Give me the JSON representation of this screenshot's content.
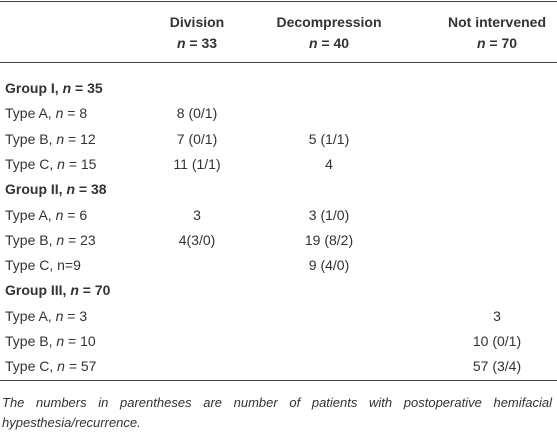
{
  "table": {
    "columns": [
      {
        "name": "Division",
        "n": "n = 33"
      },
      {
        "name": "Decompression",
        "n": "n = 40"
      },
      {
        "name": "Not intervened",
        "n": "n = 70"
      }
    ],
    "groups": [
      {
        "label": "Group I, n = 35",
        "rows": [
          {
            "label": "Type A, n = 8",
            "cells": [
              "8 (0/1)",
              null,
              null
            ]
          },
          {
            "label": "Type B, n = 12",
            "cells": [
              "7 (0/1)",
              "5 (1/1)",
              null
            ]
          },
          {
            "label": "Type C, n = 15",
            "cells": [
              "11 (1/1)",
              "4",
              null
            ]
          }
        ]
      },
      {
        "label": "Group II, n = 38",
        "rows": [
          {
            "label": "Type A, n = 6",
            "cells": [
              "3",
              "3 (1/0)",
              null
            ]
          },
          {
            "label": "Type B, n = 23",
            "cells": [
              "4(3/0)",
              "19 (8/2)",
              null
            ]
          },
          {
            "label": "Type C, n=9",
            "cells": [
              null,
              "9 (4/0)",
              null
            ]
          }
        ]
      },
      {
        "label": "Group III, n = 70",
        "rows": [
          {
            "label": "Type A, n = 3",
            "cells": [
              null,
              null,
              "3"
            ]
          },
          {
            "label": "Type B, n = 10",
            "cells": [
              null,
              null,
              "10 (0/1)"
            ]
          },
          {
            "label": "Type C, n = 57",
            "cells": [
              null,
              null,
              "57 (3/4)"
            ]
          }
        ]
      }
    ]
  },
  "footnote": "The numbers in parentheses are number of patients with postoperative hemifacial hypesthesia/recurrence."
}
